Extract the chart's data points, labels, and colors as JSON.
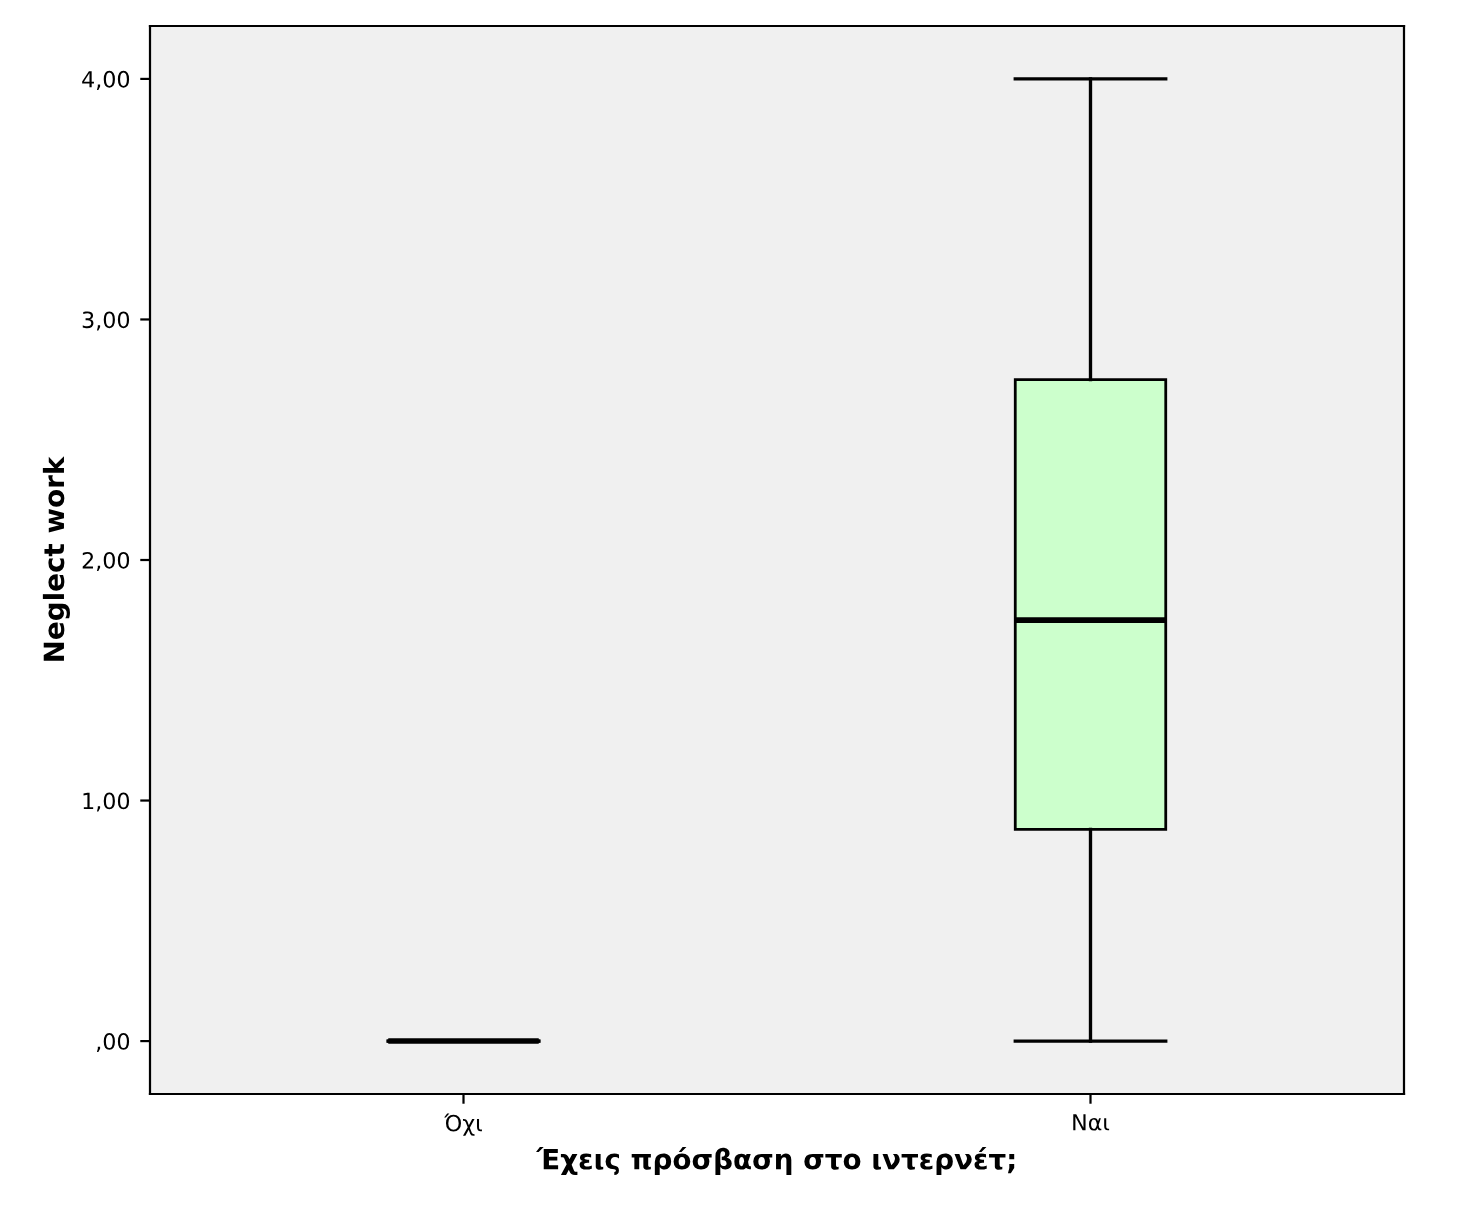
{
  "chart_data": {
    "type": "box",
    "xlabel": "Έχεις πρόσβαση στο ιντερνέτ;",
    "ylabel": "Neglect work",
    "categories": [
      "Όχι",
      "Ναι"
    ],
    "boxes": [
      {
        "low": 0,
        "q1": 0,
        "median": 0,
        "q3": 0,
        "high": 0
      },
      {
        "low": 0,
        "q1": 0.88,
        "median": 1.75,
        "q3": 2.75,
        "high": 4
      }
    ],
    "colors": [
      "#000000",
      "#ccffcc"
    ],
    "ylim": [
      -0.22,
      4.22
    ],
    "yticks": [
      {
        "value": 0,
        "label": ",00"
      },
      {
        "value": 1,
        "label": "1,00"
      },
      {
        "value": 2,
        "label": "2,00"
      },
      {
        "value": 3,
        "label": "3,00"
      },
      {
        "value": 4,
        "label": "4,00"
      }
    ],
    "grid": false
  }
}
